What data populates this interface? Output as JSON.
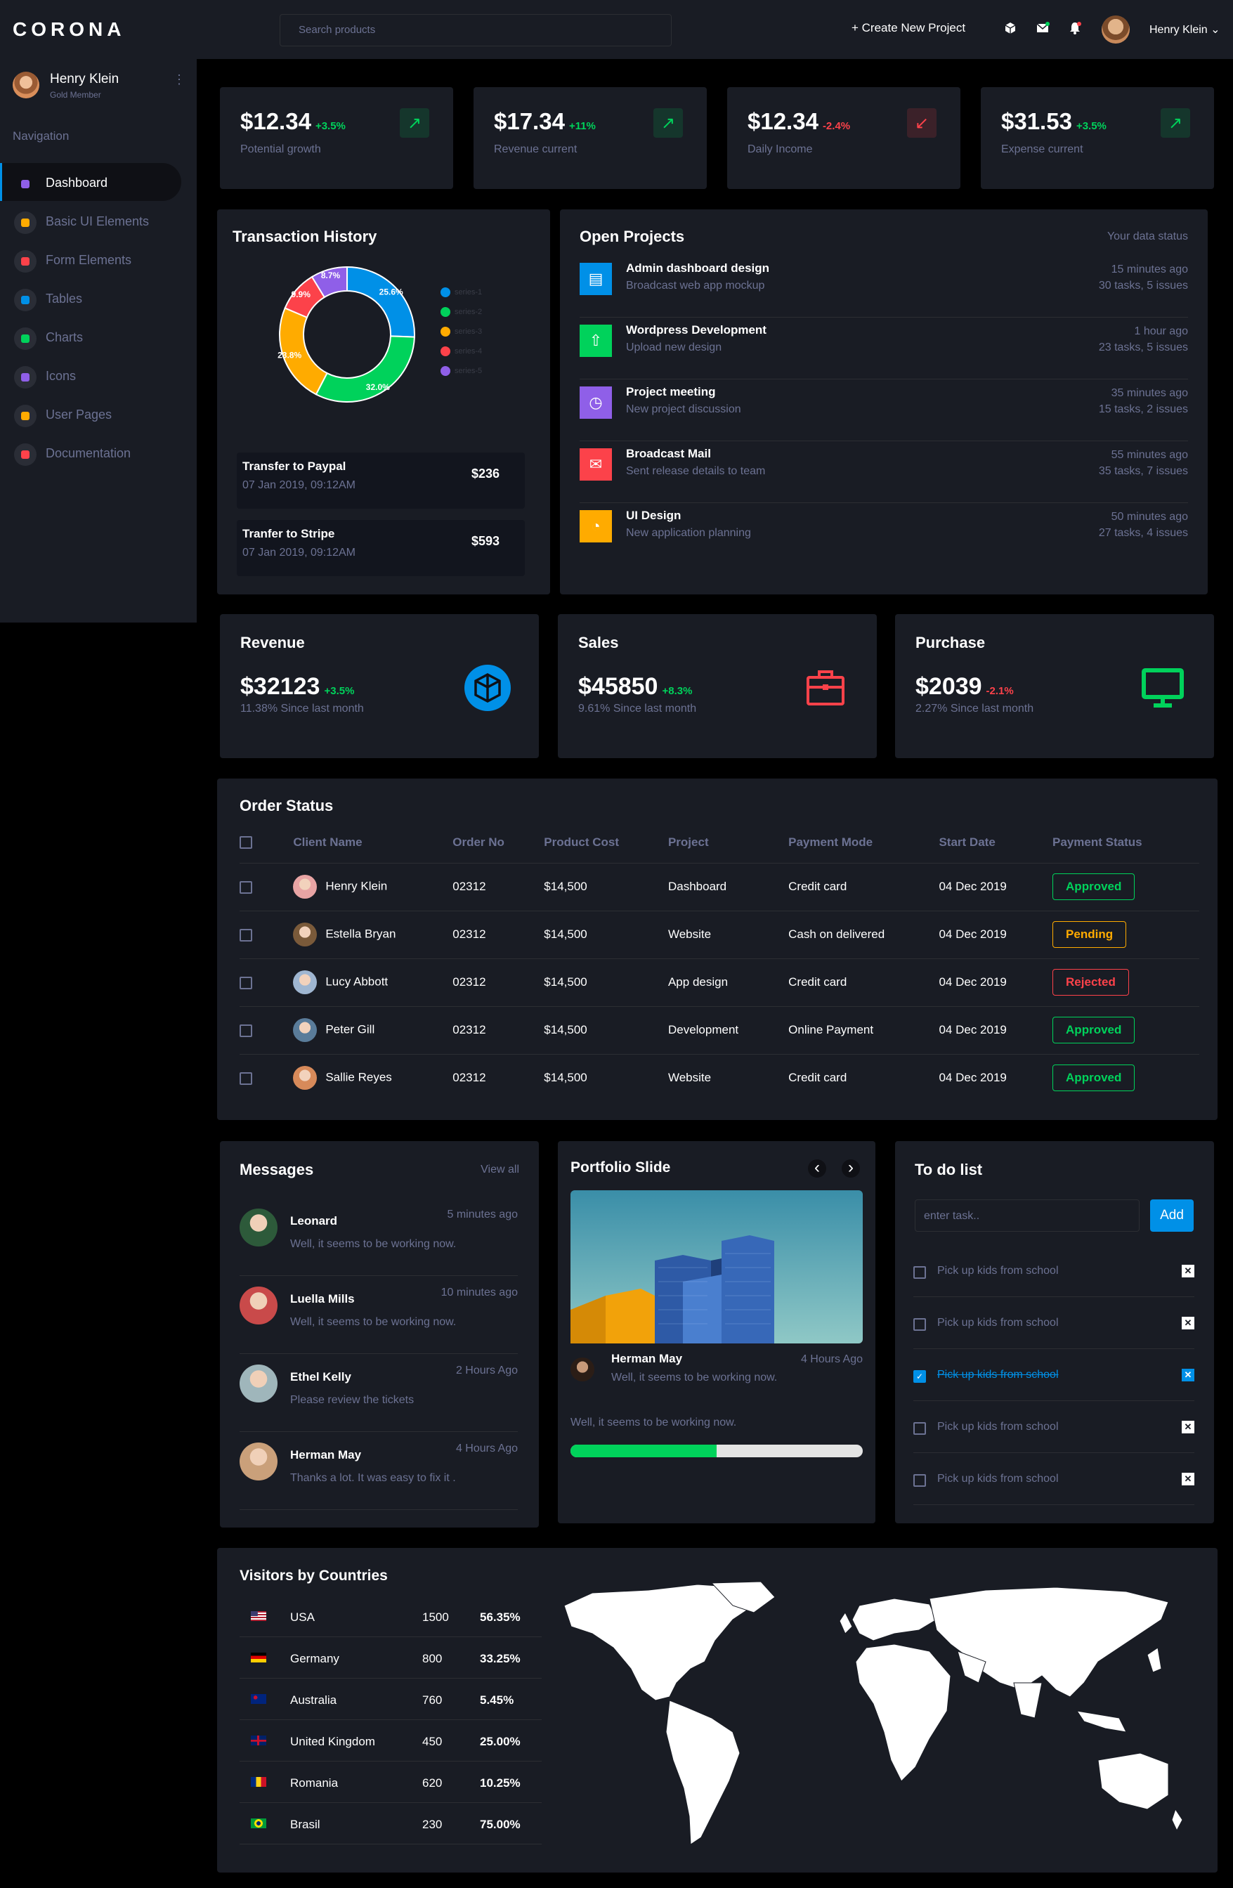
{
  "brand": "CORONA",
  "search": {
    "placeholder": "Search products"
  },
  "topbar": {
    "create_label": "+ Create New Project",
    "user_name": "Henry Klein",
    "chevron": "⌄"
  },
  "sidebar": {
    "user_name": "Henry Klein",
    "user_role": "Gold Member",
    "more": "⋮",
    "nav_label": "Navigation",
    "items": [
      {
        "label": "Dashboard",
        "icon": "speedometer-icon",
        "color": "#8f5fe8"
      },
      {
        "label": "Basic UI Elements",
        "icon": "laptop-icon",
        "color": "#ffab00"
      },
      {
        "label": "Form Elements",
        "icon": "playlist-icon",
        "color": "#fc424a"
      },
      {
        "label": "Tables",
        "icon": "table-icon",
        "color": "#0090e7"
      },
      {
        "label": "Charts",
        "icon": "chart-icon",
        "color": "#00d25b"
      },
      {
        "label": "Icons",
        "icon": "contacts-icon",
        "color": "#8f5fe8"
      },
      {
        "label": "User Pages",
        "icon": "security-icon",
        "color": "#ffab00"
      },
      {
        "label": "Documentation",
        "icon": "file-icon",
        "color": "#fc424a"
      }
    ]
  },
  "stats": [
    {
      "value": "$12.34",
      "change": "+3.5%",
      "label": "Potential growth",
      "trend": "up"
    },
    {
      "value": "$17.34",
      "change": "+11%",
      "label": "Revenue current",
      "trend": "up"
    },
    {
      "value": "$12.34",
      "change": "-2.4%",
      "label": "Daily Income",
      "trend": "down"
    },
    {
      "value": "$31.53",
      "change": "+3.5%",
      "label": "Expense current",
      "trend": "up"
    }
  ],
  "transactions": {
    "title": "Transaction History",
    "legend": [
      "series-1",
      "series-2",
      "series-3",
      "series-4",
      "series-5"
    ],
    "items": [
      {
        "name": "Transfer to Paypal",
        "date": "07 Jan 2019, 09:12AM",
        "amount": "$236"
      },
      {
        "name": "Tranfer to Stripe",
        "date": "07 Jan 2019, 09:12AM",
        "amount": "$593"
      }
    ]
  },
  "chart_data": {
    "type": "pie",
    "title": "",
    "categories": [
      "series-1",
      "series-2",
      "series-3",
      "series-4",
      "series-5"
    ],
    "values": [
      25.6,
      32.0,
      23.8,
      9.9,
      8.7
    ],
    "labels": [
      "25.6%",
      "32.0%",
      "23.8%",
      "9.9%",
      "8.7%"
    ],
    "colors": [
      "#0090e7",
      "#00d25b",
      "#ffab00",
      "#fc424a",
      "#8f5fe8"
    ]
  },
  "projects": {
    "title": "Open Projects",
    "status_label": "Your data status",
    "items": [
      {
        "title": "Admin dashboard design",
        "sub": "Broadcast web app mockup",
        "time": "15 minutes ago",
        "tasks": "30 tasks, 5 issues",
        "color": "#0090e7",
        "icon": "document-icon",
        "glyph": "▤"
      },
      {
        "title": "Wordpress Development",
        "sub": "Upload new design",
        "time": "1 hour ago",
        "tasks": "23 tasks, 5 issues",
        "color": "#00d25b",
        "icon": "cloud-upload-icon",
        "glyph": "⇧"
      },
      {
        "title": "Project meeting",
        "sub": "New project discussion",
        "time": "35 minutes ago",
        "tasks": "15 tasks, 2 issues",
        "color": "#8f5fe8",
        "icon": "clock-icon",
        "glyph": "◷"
      },
      {
        "title": "Broadcast Mail",
        "sub": "Sent release details to team",
        "time": "55 minutes ago",
        "tasks": "35 tasks, 7 issues",
        "color": "#fc424a",
        "icon": "mail-icon",
        "glyph": "✉"
      },
      {
        "title": "UI Design",
        "sub": "New application planning",
        "time": "50 minutes ago",
        "tasks": "27 tasks, 4 issues",
        "color": "#ffab00",
        "icon": "chart-pie-icon",
        "glyph": "◔"
      }
    ]
  },
  "summary": [
    {
      "title": "Revenue",
      "value": "$32123",
      "change": "+3.5%",
      "sub": "11.38% Since last month",
      "icon": "codepen-icon",
      "color": "#0090e7",
      "trend": "up"
    },
    {
      "title": "Sales",
      "value": "$45850",
      "change": "+8.3%",
      "sub": "9.61% Since last month",
      "icon": "briefcase-icon",
      "color": "#fc424a",
      "trend": "up"
    },
    {
      "title": "Purchase",
      "value": "$2039",
      "change": "-2.1%",
      "sub": "2.27% Since last month",
      "icon": "monitor-icon",
      "color": "#00d25b",
      "trend": "down"
    }
  ],
  "orders": {
    "title": "Order Status",
    "headers": [
      "Client Name",
      "Order No",
      "Product Cost",
      "Project",
      "Payment Mode",
      "Start Date",
      "Payment Status"
    ],
    "rows": [
      {
        "client": "Henry Klein",
        "order": "02312",
        "cost": "$14,500",
        "project": "Dashboard",
        "mode": "Credit card",
        "date": "04 Dec 2019",
        "status": "Approved",
        "kind": "ok"
      },
      {
        "client": "Estella Bryan",
        "order": "02312",
        "cost": "$14,500",
        "project": "Website",
        "mode": "Cash on delivered",
        "date": "04 Dec 2019",
        "status": "Pending",
        "kind": "pend"
      },
      {
        "client": "Lucy Abbott",
        "order": "02312",
        "cost": "$14,500",
        "project": "App design",
        "mode": "Credit card",
        "date": "04 Dec 2019",
        "status": "Rejected",
        "kind": "rej"
      },
      {
        "client": "Peter Gill",
        "order": "02312",
        "cost": "$14,500",
        "project": "Development",
        "mode": "Online Payment",
        "date": "04 Dec 2019",
        "status": "Approved",
        "kind": "ok"
      },
      {
        "client": "Sallie Reyes",
        "order": "02312",
        "cost": "$14,500",
        "project": "Website",
        "mode": "Credit card",
        "date": "04 Dec 2019",
        "status": "Approved",
        "kind": "ok"
      }
    ]
  },
  "messages": {
    "title": "Messages",
    "view_all": "View all",
    "items": [
      {
        "name": "Leonard",
        "text": "Well, it seems to be working now.",
        "time": "5 minutes ago"
      },
      {
        "name": "Luella Mills",
        "text": "Well, it seems to be working now.",
        "time": "10 minutes ago"
      },
      {
        "name": "Ethel Kelly",
        "text": "Please review the tickets",
        "time": "2 Hours Ago"
      },
      {
        "name": "Herman May",
        "text": "Thanks a lot. It was easy to fix it .",
        "time": "4 Hours Ago"
      }
    ]
  },
  "portfolio": {
    "title": "Portfolio Slide",
    "prev": "‹",
    "next": "›",
    "author": "Herman May",
    "author_text": "Well, it seems to be working now.",
    "time": "4 Hours Ago",
    "caption": "Well, it seems to be working now.",
    "progress": 0.5
  },
  "todo": {
    "title": "To do list",
    "placeholder": "enter task..",
    "add_label": "Add",
    "remove_glyph": "✕",
    "items": [
      {
        "text": "Pick up kids from school",
        "done": false
      },
      {
        "text": "Pick up kids from school",
        "done": false
      },
      {
        "text": "Pick up kids from school",
        "done": true
      },
      {
        "text": "Pick up kids from school",
        "done": false
      },
      {
        "text": "Pick up kids from school",
        "done": false
      }
    ]
  },
  "visitors": {
    "title": "Visitors by Countries",
    "rows": [
      {
        "country": "USA",
        "count": "1500",
        "pct": "56.35%",
        "flag": "us-flag-icon"
      },
      {
        "country": "Germany",
        "count": "800",
        "pct": "33.25%",
        "flag": "de-flag-icon"
      },
      {
        "country": "Australia",
        "count": "760",
        "pct": "5.45%",
        "flag": "au-flag-icon"
      },
      {
        "country": "United Kingdom",
        "count": "450",
        "pct": "25.00%",
        "flag": "gb-flag-icon"
      },
      {
        "country": "Romania",
        "count": "620",
        "pct": "10.25%",
        "flag": "ro-flag-icon"
      },
      {
        "country": "Brasil",
        "count": "230",
        "pct": "75.00%",
        "flag": "br-flag-icon"
      }
    ]
  }
}
